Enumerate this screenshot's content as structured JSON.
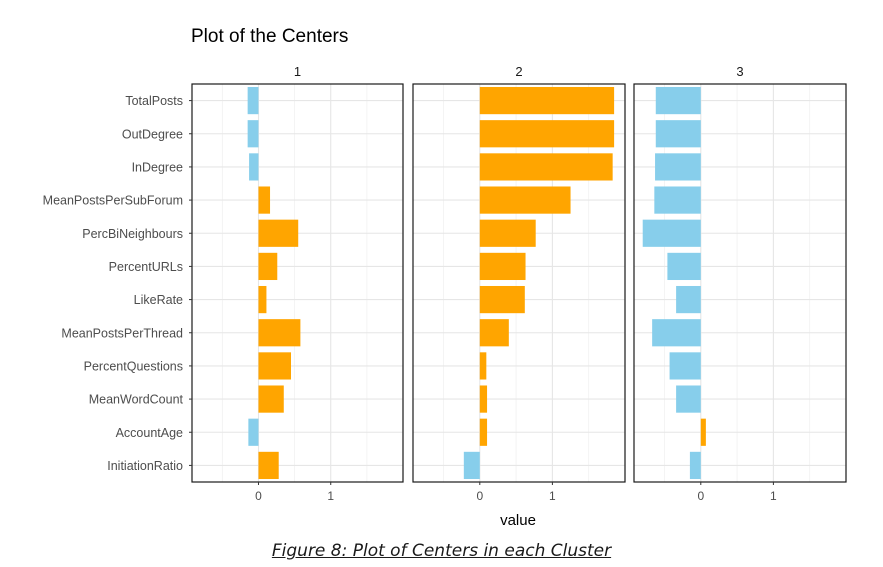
{
  "chart_data": {
    "type": "bar",
    "title": "Plot of the Centers",
    "xlabel": "value",
    "ylabel": "",
    "orientation": "horizontal",
    "facets": [
      "1",
      "2",
      "3"
    ],
    "categories": [
      "TotalPosts",
      "OutDegree",
      "InDegree",
      "MeanPostsPerSubForum",
      "PercBiNeighbours",
      "PercentURLs",
      "LikeRate",
      "MeanPostsPerThread",
      "PercentQuestions",
      "MeanWordCount",
      "AccountAge",
      "InitiationRatio"
    ],
    "series": [
      {
        "values": [
          -0.15,
          -0.15,
          -0.13,
          0.16,
          0.55,
          0.26,
          0.11,
          0.58,
          0.45,
          0.35,
          -0.14,
          0.28
        ]
      },
      {
        "values": [
          1.85,
          1.85,
          1.83,
          1.25,
          0.77,
          0.63,
          0.62,
          0.4,
          0.09,
          0.1,
          0.1,
          -0.22
        ]
      },
      {
        "values": [
          -0.62,
          -0.62,
          -0.63,
          -0.64,
          -0.8,
          -0.46,
          -0.34,
          -0.67,
          -0.43,
          -0.34,
          0.07,
          -0.15
        ]
      }
    ],
    "xlim": [
      -0.92,
      2.0
    ],
    "xticks": [
      0,
      1
    ],
    "xtick_labels": [
      "0",
      "1"
    ],
    "colors": {
      "positive": "#FFA500",
      "negative": "#87CEEB"
    },
    "grid": true,
    "legend": "none"
  },
  "caption": "Figure 8: Plot of Centers in each Cluster"
}
